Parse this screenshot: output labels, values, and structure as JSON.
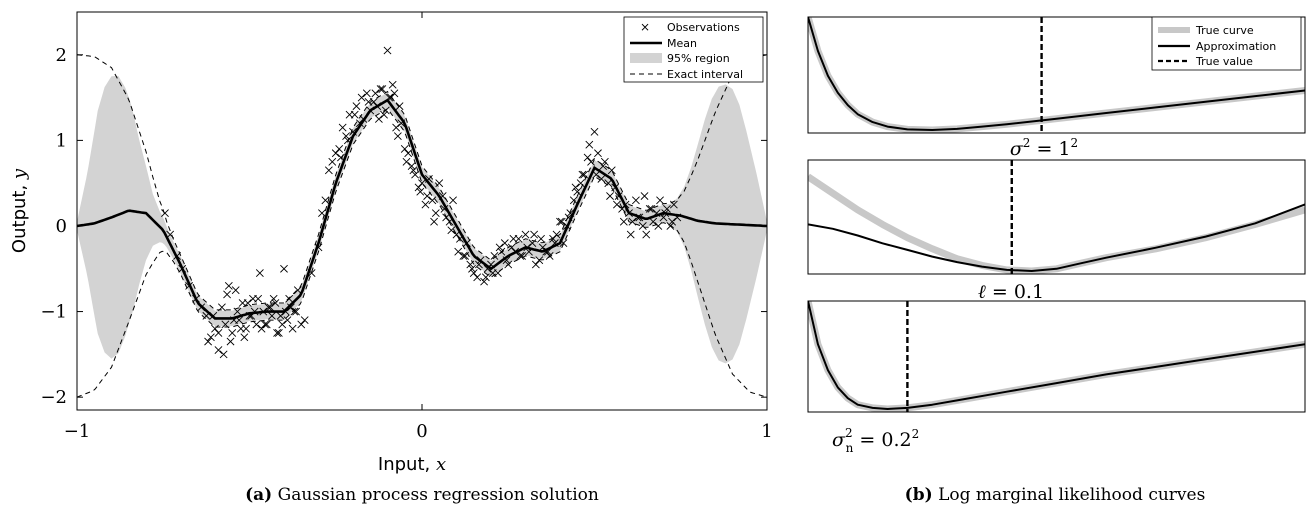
{
  "chart_data": [
    {
      "type": "scatter",
      "panel_label": "(a)",
      "caption": "Gaussian process regression solution",
      "xlabel": "Input, ",
      "xlabel_var": "x",
      "ylabel": "Output, ",
      "ylabel_var": "y",
      "xlim": [
        -1,
        1
      ],
      "ylim": [
        -2.15,
        2.5
      ],
      "xticks": [
        -1,
        0,
        1
      ],
      "yticks": [
        -2,
        -1,
        0,
        1,
        2
      ],
      "legend_position": "top-right",
      "legend": {
        "observations": "Observations",
        "mean": "Mean",
        "region": "95% region",
        "exact": "Exact interval"
      },
      "colors": {
        "region": "#d3d3d3",
        "mean": "#000000"
      },
      "mean_curve": {
        "x": [
          -1.0,
          -0.95,
          -0.9,
          -0.85,
          -0.8,
          -0.75,
          -0.7,
          -0.65,
          -0.6,
          -0.55,
          -0.5,
          -0.45,
          -0.4,
          -0.35,
          -0.3,
          -0.25,
          -0.2,
          -0.15,
          -0.1,
          -0.05,
          0.0,
          0.05,
          0.1,
          0.15,
          0.2,
          0.25,
          0.3,
          0.35,
          0.4,
          0.45,
          0.5,
          0.55,
          0.6,
          0.65,
          0.7,
          0.75,
          0.8,
          0.85,
          0.9,
          0.95,
          1.0
        ],
        "y": [
          0.0,
          0.03,
          0.1,
          0.18,
          0.15,
          -0.05,
          -0.45,
          -0.9,
          -1.08,
          -1.08,
          -1.02,
          -1.0,
          -1.0,
          -0.8,
          -0.2,
          0.5,
          1.05,
          1.35,
          1.47,
          1.2,
          0.6,
          0.35,
          0.0,
          -0.35,
          -0.5,
          -0.35,
          -0.25,
          -0.3,
          -0.2,
          0.25,
          0.68,
          0.55,
          0.15,
          0.08,
          0.15,
          0.12,
          0.06,
          0.03,
          0.02,
          0.01,
          0.0
        ]
      },
      "region_halfwidth": {
        "x": [
          -1.0,
          -0.97,
          -0.94,
          -0.92,
          -0.9,
          -0.88,
          -0.86,
          -0.84,
          -0.82,
          -0.8,
          -0.78,
          -0.76,
          -0.74,
          -0.72,
          -0.7,
          -0.65,
          -0.6,
          -0.4,
          -0.35,
          -0.3,
          0.65,
          0.7,
          0.72,
          0.74,
          0.76,
          0.78,
          0.8,
          0.82,
          0.84,
          0.86,
          0.88,
          0.9,
          0.92,
          0.94,
          0.97,
          1.0
        ],
        "y": [
          0.05,
          0.6,
          1.3,
          1.55,
          1.65,
          1.62,
          1.45,
          1.2,
          0.85,
          0.55,
          0.3,
          0.18,
          0.12,
          0.1,
          0.1,
          0.09,
          0.09,
          0.09,
          0.09,
          0.09,
          0.09,
          0.1,
          0.12,
          0.2,
          0.35,
          0.6,
          0.9,
          1.2,
          1.45,
          1.6,
          1.63,
          1.58,
          1.4,
          1.1,
          0.6,
          0.05
        ]
      },
      "exact_halfwidth": {
        "x": [
          -1.0,
          -0.95,
          -0.9,
          -0.85,
          -0.8,
          -0.78,
          -0.76,
          -0.74,
          -0.72,
          -0.7,
          -0.65,
          0.65,
          0.7,
          0.72,
          0.74,
          0.76,
          0.78,
          0.8,
          0.85,
          0.9,
          0.95,
          1.0
        ],
        "y": [
          2.0,
          1.95,
          1.75,
          1.3,
          0.72,
          0.5,
          0.3,
          0.18,
          0.13,
          0.11,
          0.1,
          0.1,
          0.11,
          0.13,
          0.18,
          0.3,
          0.5,
          0.72,
          1.3,
          1.75,
          1.95,
          2.0
        ]
      },
      "observations": {
        "x": [
          -0.745,
          -0.73,
          -0.71,
          -0.695,
          -0.675,
          -0.655,
          -0.64,
          -0.625,
          -0.612,
          -0.6,
          -0.59,
          -0.58,
          -0.57,
          -0.56,
          -0.55,
          -0.54,
          -0.53,
          -0.52,
          -0.51,
          -0.5,
          -0.49,
          -0.48,
          -0.47,
          -0.46,
          -0.45,
          -0.44,
          -0.43,
          -0.42,
          -0.41,
          -0.4,
          -0.39,
          -0.38,
          -0.37,
          -0.36,
          -0.35,
          -0.34,
          -0.32,
          -0.3,
          -0.29,
          -0.28,
          -0.27,
          -0.26,
          -0.25,
          -0.24,
          -0.23,
          -0.22,
          -0.21,
          -0.2,
          -0.19,
          -0.18,
          -0.17,
          -0.16,
          -0.15,
          -0.14,
          -0.13,
          -0.12,
          -0.11,
          -0.1,
          -0.09,
          -0.08,
          -0.07,
          -0.06,
          -0.05,
          -0.04,
          -0.03,
          -0.02,
          -0.01,
          0.0,
          0.01,
          0.02,
          0.03,
          0.04,
          0.05,
          0.06,
          0.07,
          0.08,
          0.09,
          0.1,
          0.11,
          0.12,
          0.13,
          0.14,
          0.15,
          0.16,
          0.17,
          0.18,
          0.19,
          0.2,
          0.21,
          0.22,
          0.23,
          0.24,
          0.25,
          0.26,
          0.27,
          0.28,
          0.29,
          0.3,
          0.31,
          0.32,
          0.33,
          0.34,
          0.35,
          0.36,
          0.37,
          0.38,
          0.39,
          0.4,
          0.41,
          0.42,
          0.43,
          0.44,
          0.45,
          0.46,
          0.47,
          0.48,
          0.49,
          0.5,
          0.51,
          0.52,
          0.53,
          0.54,
          0.55,
          0.56,
          0.57,
          0.58,
          0.59,
          0.6,
          0.61,
          0.62,
          0.63,
          0.64,
          0.65,
          0.66,
          0.67,
          0.68,
          0.69,
          0.7,
          0.71,
          0.72,
          0.73,
          0.74,
          -0.62,
          -0.605,
          -0.59,
          -0.575,
          -0.565,
          -0.555,
          -0.545,
          -0.535,
          -0.525,
          -0.515,
          -0.505,
          -0.495,
          -0.485,
          -0.475,
          -0.465,
          -0.455,
          -0.445,
          -0.435,
          -0.425,
          -0.415,
          -0.405,
          -0.395,
          -0.385,
          -0.375,
          -0.365,
          -0.235,
          -0.215,
          -0.195,
          -0.175,
          -0.155,
          -0.135,
          -0.125,
          -0.115,
          -0.105,
          -0.095,
          -0.085,
          -0.075,
          -0.065,
          -0.045,
          -0.025,
          -0.005,
          0.015,
          0.035,
          0.065,
          0.085,
          0.105,
          0.125,
          0.145,
          0.165,
          0.185,
          0.205,
          0.225,
          0.245,
          0.265,
          0.285,
          0.305,
          0.325,
          0.345,
          0.365,
          0.385,
          0.405,
          0.425,
          0.445,
          0.465,
          0.485,
          0.505,
          0.525,
          0.545,
          0.565,
          0.585,
          0.605,
          0.625,
          0.645,
          0.665,
          0.685,
          0.705,
          0.725
        ],
        "y": [
          0.15,
          -0.1,
          -0.35,
          -0.5,
          -0.7,
          -0.85,
          -0.95,
          -1.05,
          -1.3,
          -1.2,
          -1.45,
          -0.95,
          -1.15,
          -0.7,
          -1.25,
          -0.75,
          -1.1,
          -0.9,
          -1.2,
          -1.05,
          -0.85,
          -1.15,
          -0.55,
          -1.0,
          -1.15,
          -0.95,
          -0.85,
          -1.25,
          -1.05,
          -0.5,
          -1.1,
          -0.95,
          -1.0,
          -0.75,
          -1.15,
          -1.1,
          -0.55,
          -0.25,
          0.15,
          0.3,
          0.65,
          0.75,
          0.85,
          0.9,
          1.15,
          1.05,
          1.3,
          1.1,
          1.4,
          1.2,
          1.25,
          1.55,
          1.35,
          1.45,
          1.4,
          1.6,
          1.3,
          2.05,
          1.5,
          1.55,
          1.05,
          1.2,
          0.9,
          0.85,
          0.7,
          0.6,
          0.45,
          0.5,
          0.25,
          0.55,
          0.3,
          0.15,
          0.5,
          0.35,
          0.1,
          0.05,
          0.3,
          -0.1,
          -0.15,
          -0.35,
          -0.2,
          -0.45,
          -0.55,
          -0.6,
          -0.4,
          -0.65,
          -0.5,
          -0.45,
          -0.35,
          -0.55,
          -0.3,
          -0.2,
          -0.45,
          -0.25,
          -0.3,
          -0.15,
          -0.35,
          -0.1,
          -0.3,
          -0.2,
          -0.45,
          -0.4,
          -0.25,
          -0.3,
          -0.35,
          -0.15,
          -0.1,
          0.05,
          -0.2,
          0.0,
          0.15,
          0.3,
          0.4,
          0.5,
          0.6,
          0.8,
          0.75,
          1.1,
          0.85,
          0.55,
          0.75,
          0.5,
          0.65,
          0.45,
          0.35,
          0.2,
          0.25,
          0.15,
          0.05,
          0.3,
          0.1,
          0.0,
          -0.1,
          0.2,
          0.05,
          0.15,
          0.3,
          0.1,
          0.2,
          0.0,
          0.25,
          0.1,
          -1.35,
          -1.05,
          -1.25,
          -1.5,
          -0.8,
          -1.35,
          -1.1,
          -1.0,
          -1.2,
          -1.3,
          -0.9,
          -1.05,
          -1.0,
          -0.85,
          -1.2,
          -1.15,
          -0.95,
          -1.05,
          -0.9,
          -1.25,
          -1.15,
          -1.0,
          -0.85,
          -1.2,
          -1.0,
          0.8,
          1.0,
          1.3,
          1.5,
          1.45,
          1.55,
          1.25,
          1.6,
          1.35,
          1.5,
          1.65,
          1.15,
          1.4,
          0.75,
          0.65,
          0.4,
          0.35,
          0.05,
          0.2,
          -0.05,
          -0.3,
          -0.35,
          -0.5,
          -0.45,
          -0.6,
          -0.55,
          -0.25,
          -0.4,
          -0.15,
          -0.35,
          -0.25,
          -0.1,
          -0.15,
          -0.3,
          -0.2,
          0.05,
          0.1,
          0.45,
          0.6,
          0.95,
          0.6,
          0.7,
          0.35,
          0.25,
          0.05,
          -0.1,
          0.1,
          0.35,
          0.2,
          0.0,
          0.15,
          0.05
        ]
      }
    },
    {
      "type": "line",
      "panel_label": "(b)",
      "caption": "Log marginal likelihood curves",
      "legend_position": "top-right",
      "legend": {
        "true_curve": "True curve",
        "approx": "Approximation",
        "true_value": "True value"
      },
      "colors": {
        "true_curve": "#c8c8c8",
        "approx": "#000000"
      },
      "subplots": [
        {
          "label": "σ² = 1²",
          "x": [
            0.0,
            0.02,
            0.04,
            0.06,
            0.08,
            0.1,
            0.13,
            0.16,
            0.2,
            0.25,
            0.3,
            0.35,
            0.4,
            0.5,
            0.6,
            0.7,
            0.8,
            0.9,
            1.0
          ],
          "true_curve": [
            1.0,
            0.7,
            0.48,
            0.33,
            0.22,
            0.14,
            0.07,
            0.03,
            0.005,
            0.0,
            0.01,
            0.03,
            0.05,
            0.1,
            0.15,
            0.2,
            0.25,
            0.3,
            0.35
          ],
          "approx": [
            1.0,
            0.7,
            0.48,
            0.33,
            0.22,
            0.14,
            0.07,
            0.03,
            0.005,
            0.0,
            0.01,
            0.03,
            0.05,
            0.1,
            0.15,
            0.2,
            0.25,
            0.3,
            0.35
          ],
          "true_value": 0.47
        },
        {
          "label": "ℓ = 0.1",
          "x": [
            0.0,
            0.05,
            0.1,
            0.15,
            0.2,
            0.25,
            0.3,
            0.35,
            0.4,
            0.45,
            0.5,
            0.55,
            0.6,
            0.7,
            0.8,
            0.9,
            1.0
          ],
          "true_curve": [
            0.85,
            0.7,
            0.55,
            0.42,
            0.3,
            0.2,
            0.11,
            0.05,
            0.01,
            0.0,
            0.02,
            0.07,
            0.12,
            0.2,
            0.3,
            0.42,
            0.55
          ],
          "approx": [
            0.42,
            0.38,
            0.32,
            0.25,
            0.19,
            0.13,
            0.08,
            0.04,
            0.01,
            0.0,
            0.02,
            0.07,
            0.12,
            0.21,
            0.31,
            0.43,
            0.6
          ],
          "true_value": 0.41
        },
        {
          "label": "σn² = 0.2²",
          "x": [
            0.0,
            0.02,
            0.04,
            0.06,
            0.08,
            0.1,
            0.13,
            0.16,
            0.2,
            0.25,
            0.3,
            0.4,
            0.5,
            0.6,
            0.7,
            0.8,
            0.9,
            1.0
          ],
          "true_curve": [
            1.0,
            0.6,
            0.36,
            0.2,
            0.1,
            0.04,
            0.01,
            0.0,
            0.01,
            0.04,
            0.08,
            0.16,
            0.24,
            0.32,
            0.39,
            0.46,
            0.53,
            0.6
          ],
          "approx": [
            1.0,
            0.6,
            0.36,
            0.2,
            0.1,
            0.04,
            0.01,
            0.0,
            0.01,
            0.04,
            0.08,
            0.16,
            0.24,
            0.32,
            0.39,
            0.46,
            0.53,
            0.6
          ],
          "true_value": 0.2
        }
      ]
    }
  ]
}
